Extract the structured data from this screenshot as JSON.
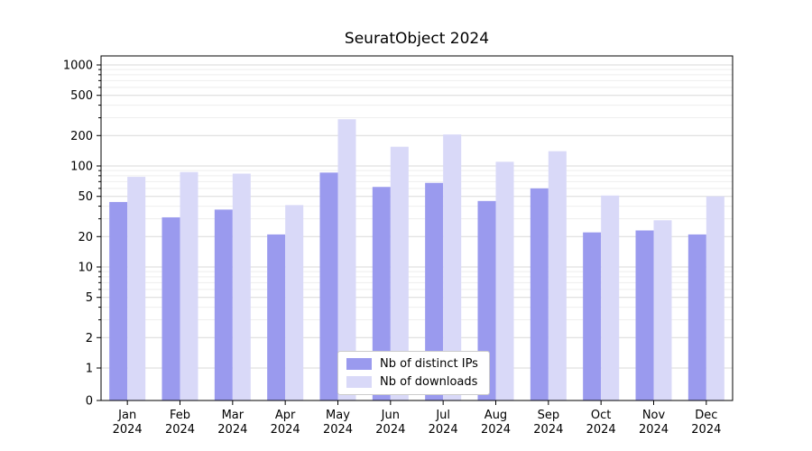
{
  "chart_data": {
    "type": "bar",
    "title": "SeuratObject 2024",
    "year_label": "2024",
    "categories": [
      "Jan",
      "Feb",
      "Mar",
      "Apr",
      "May",
      "Jun",
      "Jul",
      "Aug",
      "Sep",
      "Oct",
      "Nov",
      "Dec"
    ],
    "series": [
      {
        "key": "distinct-ips",
        "name": "Nb of distinct IPs",
        "color": "#9a9aee",
        "values": [
          44,
          31,
          37,
          21,
          86,
          62,
          68,
          45,
          60,
          22,
          23,
          21
        ]
      },
      {
        "key": "downloads",
        "name": "Nb of downloads",
        "color": "#d9d9f8",
        "values": [
          78,
          87,
          84,
          41,
          290,
          155,
          205,
          110,
          140,
          51,
          29,
          50
        ]
      }
    ],
    "yscale": "symlog",
    "ylim": [
      0,
      1000
    ],
    "yticks": [
      0,
      1,
      2,
      5,
      10,
      20,
      50,
      100,
      200,
      500,
      1000
    ],
    "y_minor_ticks": [
      3,
      4,
      6,
      7,
      8,
      9,
      30,
      40,
      60,
      70,
      80,
      90,
      300,
      400,
      600,
      700,
      800,
      900
    ],
    "grid": {
      "major_color": "#d9d9d9",
      "minor_color": "#eeeeee"
    },
    "legend_position": "lower center"
  }
}
